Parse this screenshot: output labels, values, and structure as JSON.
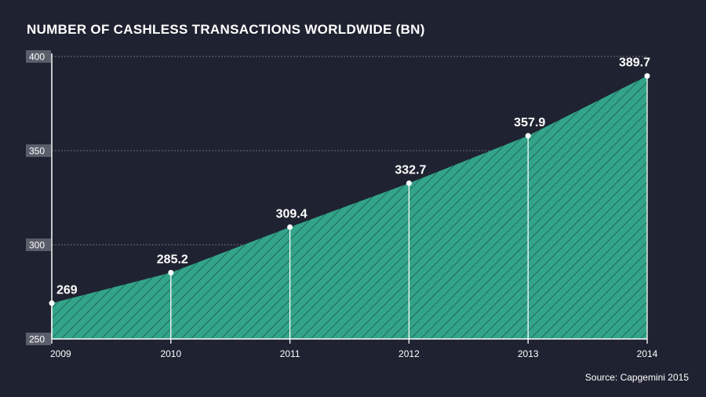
{
  "header": {
    "title": "NUMBER OF CASHLESS TRANSACTIONS WORLDWIDE (BN)"
  },
  "footer": {
    "source": "Source: Capgemini 2015"
  },
  "chart_data": {
    "type": "area",
    "title": "NUMBER OF CASHLESS TRANSACTIONS WORLDWIDE (BN)",
    "xlabel": "",
    "ylabel": "",
    "categories": [
      "2009",
      "2010",
      "2011",
      "2012",
      "2013",
      "2014"
    ],
    "values": [
      269,
      285.2,
      309.4,
      332.7,
      357.9,
      389.7
    ],
    "value_labels": [
      "269",
      "285.2",
      "309.4",
      "332.7",
      "357.9",
      "389.7"
    ],
    "ylim": [
      250,
      400
    ],
    "yticks": [
      250,
      300,
      350,
      400
    ],
    "grid": true,
    "legend": "none",
    "colors": {
      "background": "#1f2331",
      "area_fill": "#33a48a",
      "hatch": "#1c5a4c",
      "text": "#ffffff",
      "axis": "#ffffff",
      "grid": "#6b6f7b",
      "tick_box": "#5a5e6a"
    }
  }
}
